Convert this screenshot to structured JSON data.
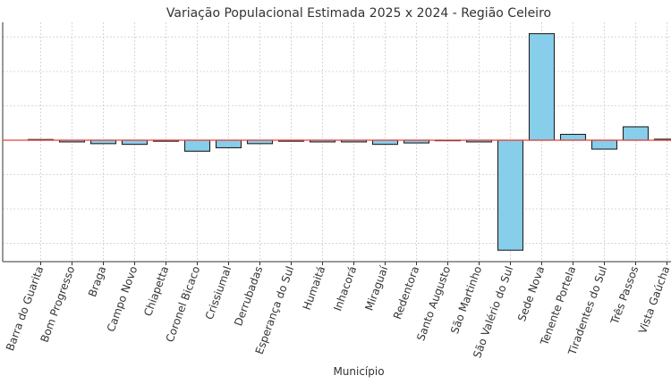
{
  "chart_data": {
    "type": "bar",
    "title": "Variação Populacional Estimada 2025 x 2024 - Região Celeiro",
    "xlabel": "Município",
    "ylabel": "",
    "ylim": [
      -35,
      31
    ],
    "grid": true,
    "categories": [
      "Barra do Guarita",
      "Bom Progresso",
      "Braga",
      "Campo Novo",
      "Chiapetta",
      "Coronel Bicaco",
      "Crissiumal",
      "Derrubadas",
      "Esperança do Sul",
      "Humaitá",
      "Inhacorá",
      "Miraguaí",
      "Redentora",
      "Santo Augusto",
      "São Martinho",
      "São Valério do Sul",
      "Sede Nova",
      "Tenente Portela",
      "Tiradentes do Sul",
      "Três Passos",
      "Vista Gaúcha"
    ],
    "values": [
      0.2,
      -0.5,
      -1.0,
      -1.2,
      -0.3,
      -3.2,
      -2.2,
      -1.0,
      -0.3,
      -0.5,
      -0.5,
      -1.2,
      -0.8,
      0,
      -0.5,
      -32,
      31,
      1.7,
      -2.6,
      3.9,
      0.3
    ],
    "colors": {
      "bar": "#87ceeb",
      "edge": "#222222",
      "zero_line": "#e8413c",
      "grid": "#cccccc",
      "axis": "#333333"
    }
  }
}
